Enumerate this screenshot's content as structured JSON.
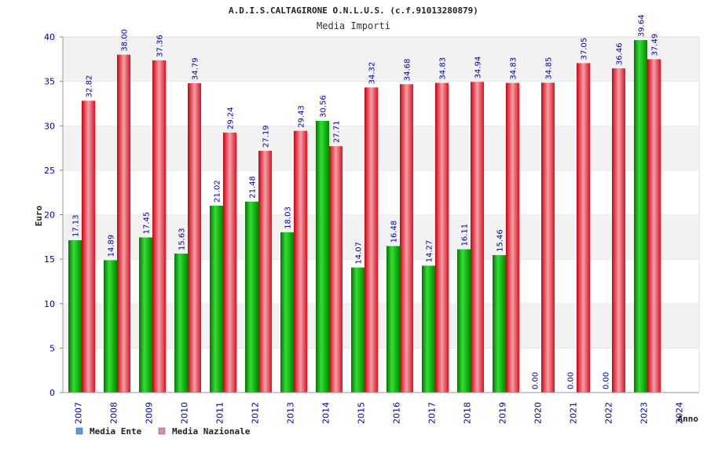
{
  "chart_data": {
    "type": "bar",
    "title": "A.D.I.S.CALTAGIRONE O.N.L.U.S. (c.f.91013280879)",
    "subtitle": "Media Importi",
    "xlabel": "Anno",
    "ylabel": "Euro",
    "ylim": [
      0,
      40
    ],
    "yticks": [
      0,
      5,
      10,
      15,
      20,
      25,
      30,
      35,
      40
    ],
    "grid": "horizontal-bands",
    "legend_placement": "bottom-left",
    "categories": [
      "2007",
      "2008",
      "2009",
      "2010",
      "2011",
      "2012",
      "2013",
      "2014",
      "2015",
      "2016",
      "2017",
      "2018",
      "2019",
      "2020",
      "2021",
      "2022",
      "2023",
      "2024"
    ],
    "series": [
      {
        "name": "Media Ente",
        "color": "#00aa00",
        "legend_color": "#5599ee",
        "values": [
          17.13,
          14.89,
          17.45,
          15.63,
          21.02,
          21.48,
          18.03,
          30.56,
          14.07,
          16.48,
          14.27,
          16.11,
          15.46,
          0.0,
          0.0,
          0.0,
          39.64,
          null
        ],
        "labels": [
          "17.13",
          "14.89",
          "17.45",
          "15.63",
          "21.02",
          "21.48",
          "18.03",
          "30.56",
          "14.07",
          "16.48",
          "14.27",
          "16.11",
          "15.46",
          "0.00",
          "0.00",
          "0.00",
          "39.64",
          null
        ]
      },
      {
        "name": "Media Nazionale",
        "color": "#ee2233",
        "legend_color": "#dd88bb",
        "values": [
          32.82,
          38.0,
          37.36,
          34.79,
          29.24,
          27.19,
          29.43,
          27.71,
          34.32,
          34.68,
          34.83,
          34.94,
          34.83,
          34.85,
          37.05,
          36.46,
          37.49,
          null
        ],
        "labels": [
          "32.82",
          "38.00",
          "37.36",
          "34.79",
          "29.24",
          "27.19",
          "29.43",
          "27.71",
          "34.32",
          "34.68",
          "34.83",
          "34.94",
          "34.83",
          "34.85",
          "37.05",
          "36.46",
          "37.49",
          null
        ]
      }
    ]
  }
}
